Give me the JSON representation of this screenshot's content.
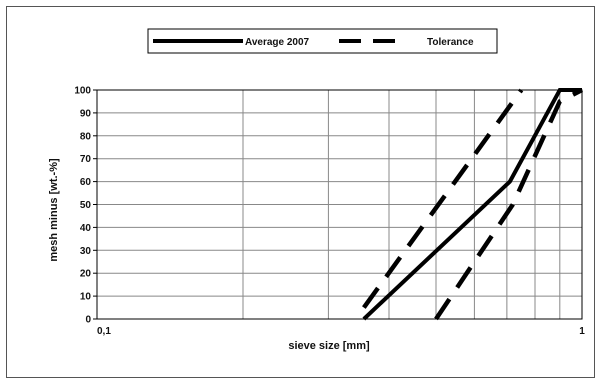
{
  "chart_data": {
    "type": "line",
    "title": "",
    "xlabel": "sieve size [mm]",
    "ylabel": "mesh minus [wt.-%]",
    "x_scale": "log",
    "xlim": [
      0.1,
      1
    ],
    "ylim": [
      0,
      100
    ],
    "x_tick_labels": [
      "0,1",
      "1"
    ],
    "y_ticks": [
      0,
      10,
      20,
      30,
      40,
      50,
      60,
      70,
      80,
      90,
      100
    ],
    "grid": true,
    "legend_position": "top-center",
    "series": [
      {
        "name": "Average 2007",
        "style": "solid",
        "color": "#000000",
        "points": [
          [
            0.355,
            0
          ],
          [
            0.71,
            60
          ],
          [
            0.9,
            100
          ],
          [
            1.0,
            100
          ]
        ]
      },
      {
        "name": "Tolerance",
        "style": "dashed",
        "color": "#000000",
        "points": [
          [
            0.355,
            5
          ],
          [
            0.75,
            100
          ]
        ]
      },
      {
        "name": "",
        "style": "dashed",
        "color": "#000000",
        "points": [
          [
            0.5,
            0
          ],
          [
            0.72,
            50
          ],
          [
            0.9,
            95
          ],
          [
            1.0,
            100
          ]
        ]
      }
    ]
  }
}
